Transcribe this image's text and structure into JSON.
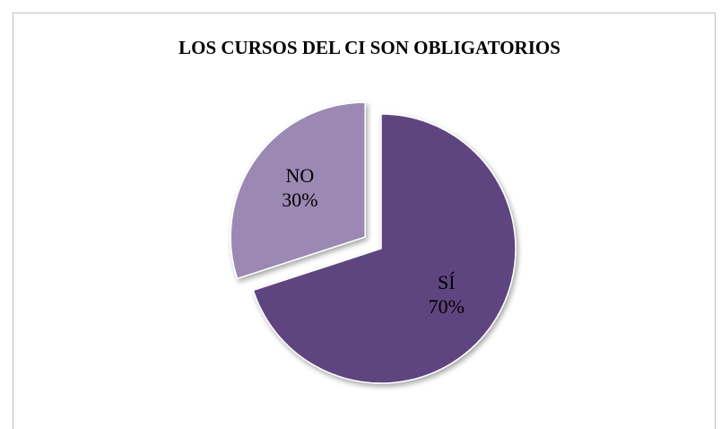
{
  "chart_data": {
    "type": "pie",
    "title": "LOS CURSOS DEL CI SON OBLIGATORIOS",
    "categories": [
      "SÍ",
      "NO"
    ],
    "values": [
      70,
      30
    ],
    "value_labels": [
      "70%",
      "30%"
    ],
    "colors": [
      "#5e4580",
      "#9b88b3"
    ],
    "exploded": [
      false,
      true
    ]
  }
}
